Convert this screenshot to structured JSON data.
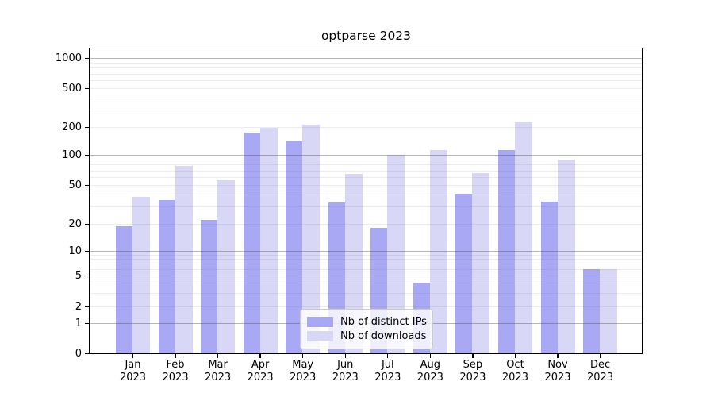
{
  "title": "optparse 2023",
  "chart_data": {
    "type": "bar",
    "title": "optparse 2023",
    "categories": [
      "Jan 2023",
      "Feb 2023",
      "Mar 2023",
      "Apr 2023",
      "May 2023",
      "Jun 2023",
      "Jul 2023",
      "Aug 2023",
      "Sep 2023",
      "Oct 2023",
      "Nov 2023",
      "Dec 2023"
    ],
    "series": [
      {
        "name": "Nb of distinct IPs",
        "color": "#a8a8f4",
        "values": [
          19,
          35,
          22,
          175,
          140,
          33,
          18,
          4,
          41,
          112,
          34,
          6
        ]
      },
      {
        "name": "Nb of downloads",
        "color": "#d8d8f6",
        "values": [
          38,
          78,
          56,
          197,
          210,
          65,
          100,
          112,
          66,
          225,
          90,
          6
        ]
      }
    ],
    "yscale": "symlog",
    "yticks": [
      0,
      1,
      2,
      5,
      10,
      20,
      50,
      100,
      200,
      500,
      1000
    ],
    "ylim": [
      0,
      1250
    ],
    "xlabel": "",
    "ylabel": "",
    "grid": true,
    "legend_position": "lower center"
  }
}
